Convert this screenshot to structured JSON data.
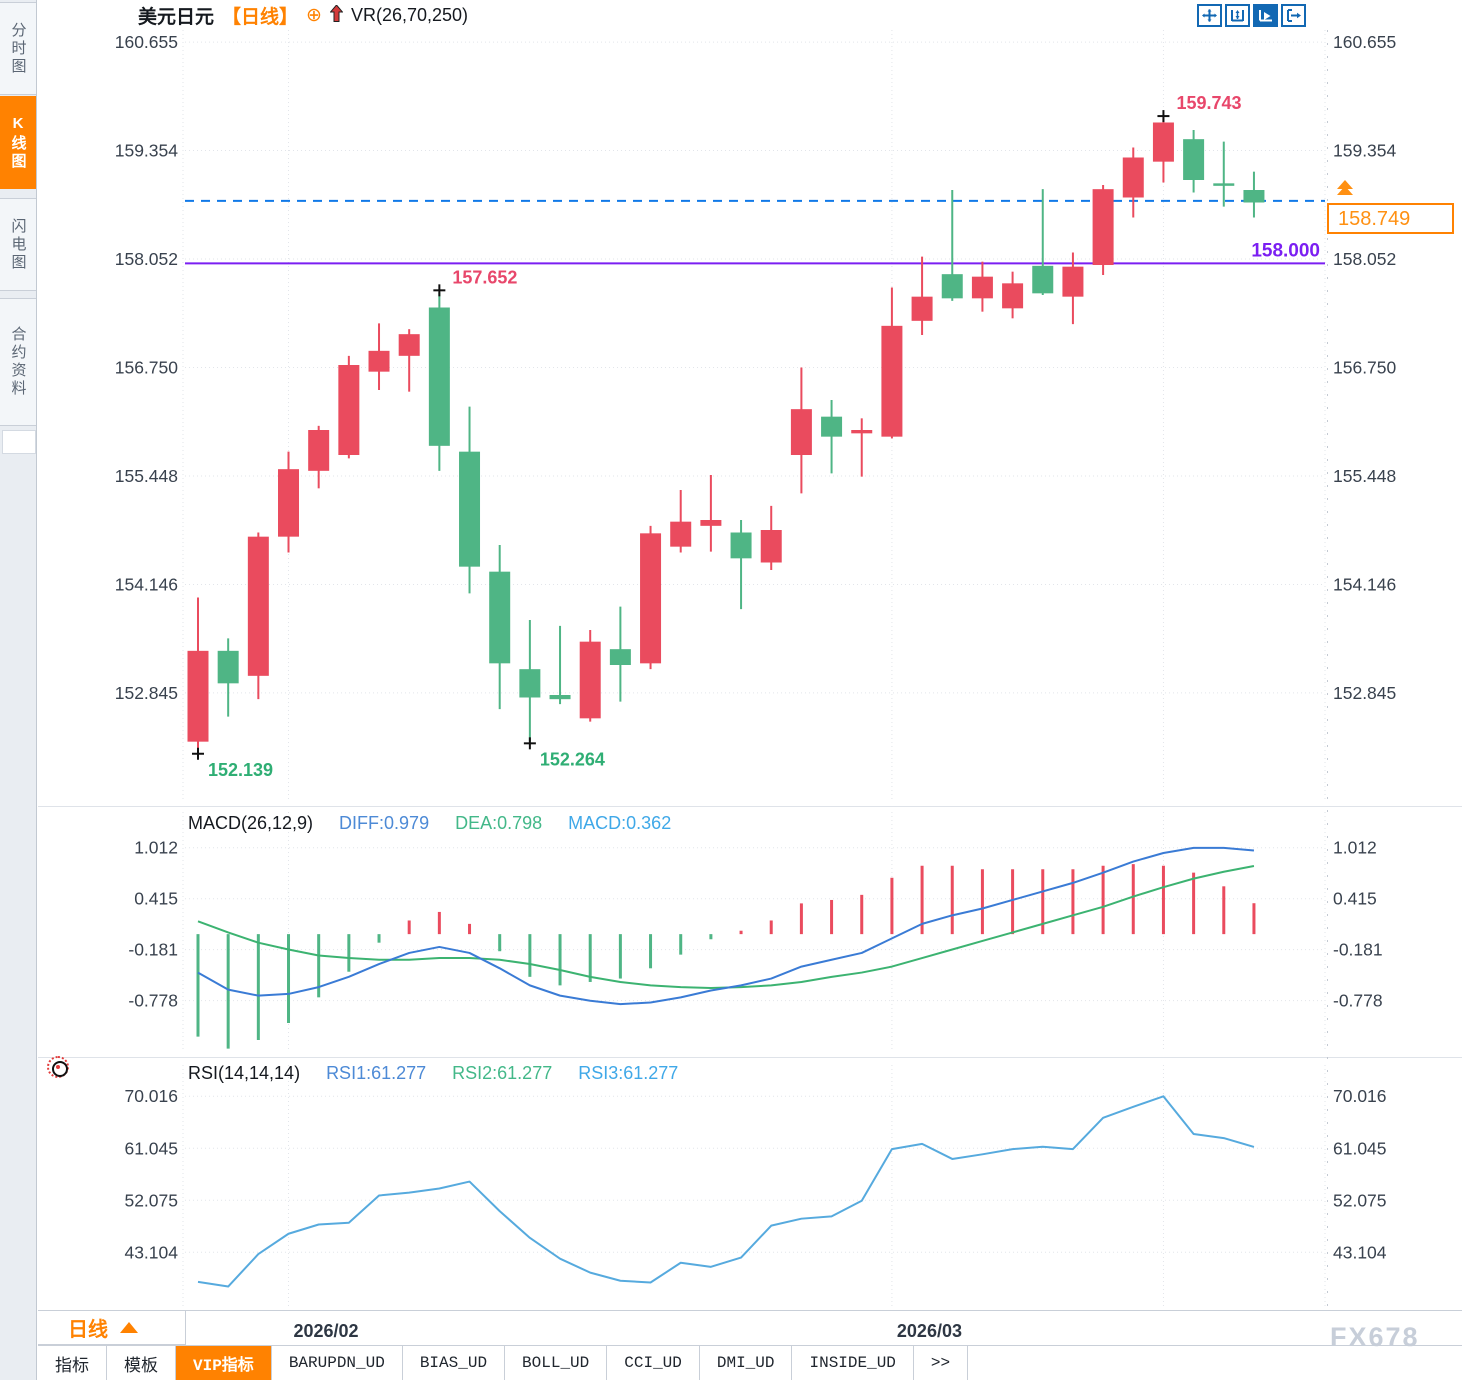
{
  "sidebar": {
    "tabs": [
      {
        "label": "分时图",
        "active": false
      },
      {
        "label": "K线图",
        "active": true
      },
      {
        "label": "闪电图",
        "active": false
      },
      {
        "label": "合约资料",
        "active": false
      }
    ]
  },
  "header": {
    "symbol": "美元日元",
    "period_tag": "【日线】",
    "plus_glyph": "⊕",
    "overlay_indicator": "VR(26,70,250)"
  },
  "toolbar": {
    "icons": [
      "move-crosshair-icon",
      "axis-range-icon",
      "axis-play-icon",
      "exit-right-icon"
    ]
  },
  "price_tag": {
    "value": "158.749"
  },
  "period_selector": {
    "label": "日线"
  },
  "watermark": "FX678",
  "bottom_tabs": {
    "items": [
      "指标",
      "模板",
      "VIP指标",
      "BARUPDN_UD",
      "BIAS_UD",
      "BOLL_UD",
      "CCI_UD",
      "DMI_UD",
      "INSIDE_UD",
      ">>"
    ],
    "active_index": 2
  },
  "chart_data": {
    "type": "candlestick",
    "title": "美元日元 日线 (USD/JPY daily)",
    "x_labels": [
      {
        "text": "2026/02",
        "candle": 4
      },
      {
        "text": "2026/03",
        "candle": 24
      }
    ],
    "extra_vgrid_candles": [
      33
    ],
    "main": {
      "ticks": [
        "160.655",
        "159.354",
        "158.052",
        "156.750",
        "155.448",
        "154.146",
        "152.845"
      ],
      "range": [
        151.56,
        160.8
      ]
    },
    "candles": [
      [
        152.26,
        153.99,
        152.139,
        153.35
      ],
      [
        153.35,
        153.5,
        152.56,
        152.96
      ],
      [
        153.05,
        154.77,
        152.77,
        154.72
      ],
      [
        154.72,
        155.74,
        154.53,
        155.53
      ],
      [
        155.51,
        156.05,
        155.3,
        156.0
      ],
      [
        155.7,
        156.89,
        155.66,
        156.78
      ],
      [
        156.7,
        157.28,
        156.48,
        156.95
      ],
      [
        156.89,
        157.21,
        156.46,
        157.15
      ],
      [
        157.47,
        157.652,
        155.51,
        155.81
      ],
      [
        155.74,
        156.28,
        154.04,
        154.36
      ],
      [
        154.3,
        154.62,
        152.65,
        153.2
      ],
      [
        153.13,
        153.72,
        152.264,
        152.79
      ],
      [
        152.82,
        153.65,
        152.71,
        152.77
      ],
      [
        152.54,
        153.6,
        152.5,
        153.46
      ],
      [
        153.37,
        153.88,
        152.74,
        153.18
      ],
      [
        153.2,
        154.85,
        153.13,
        154.76
      ],
      [
        154.6,
        155.28,
        154.53,
        154.9
      ],
      [
        154.85,
        155.46,
        154.54,
        154.92
      ],
      [
        154.77,
        154.92,
        153.85,
        154.46
      ],
      [
        154.41,
        155.09,
        154.32,
        154.8
      ],
      [
        155.7,
        156.75,
        155.24,
        156.25
      ],
      [
        156.16,
        156.36,
        155.48,
        155.92
      ],
      [
        155.96,
        156.14,
        155.44,
        156.0
      ],
      [
        155.92,
        157.71,
        155.9,
        157.25
      ],
      [
        157.31,
        158.08,
        157.14,
        157.6
      ],
      [
        157.87,
        158.88,
        157.55,
        157.58
      ],
      [
        157.58,
        158.02,
        157.42,
        157.84
      ],
      [
        157.46,
        157.9,
        157.34,
        157.76
      ],
      [
        157.97,
        158.89,
        157.62,
        157.64
      ],
      [
        157.6,
        158.13,
        157.27,
        157.96
      ],
      [
        157.98,
        158.94,
        157.86,
        158.89
      ],
      [
        158.79,
        159.39,
        158.55,
        159.27
      ],
      [
        159.22,
        159.743,
        158.97,
        159.69
      ],
      [
        159.49,
        159.6,
        158.85,
        159.0
      ],
      [
        158.96,
        159.46,
        158.68,
        158.93
      ],
      [
        158.88,
        159.1,
        158.55,
        158.73
      ]
    ],
    "annotations": [
      {
        "candle": 1,
        "type": "low",
        "label": "152.139"
      },
      {
        "candle": 9,
        "type": "high",
        "label": "157.652"
      },
      {
        "candle": 12,
        "type": "low",
        "label": "152.264"
      },
      {
        "candle": 33,
        "type": "high",
        "label": "159.743"
      }
    ],
    "hlines": [
      {
        "value": 158.0,
        "label": "158.000",
        "style": "solid",
        "color": "#7b1ff2"
      },
      {
        "value": 158.749,
        "label": "",
        "style": "dashed",
        "color": "#1179e8"
      }
    ],
    "macd": {
      "title": "MACD(26,12,9)",
      "readouts": [
        {
          "label": "DIFF:0.979",
          "color": "#4d8ad6"
        },
        {
          "label": "DEA:0.798",
          "color": "#43b889"
        },
        {
          "label": "MACD:0.362",
          "color": "#3fa8e8"
        }
      ],
      "ticks": [
        "1.012",
        "0.415",
        "-0.181",
        "-0.778"
      ],
      "range": [
        -1.38,
        1.43
      ],
      "diff": [
        -0.45,
        -0.65,
        -0.72,
        -0.7,
        -0.62,
        -0.5,
        -0.35,
        -0.22,
        -0.15,
        -0.22,
        -0.4,
        -0.6,
        -0.72,
        -0.78,
        -0.82,
        -0.8,
        -0.74,
        -0.66,
        -0.6,
        -0.52,
        -0.38,
        -0.3,
        -0.22,
        -0.05,
        0.12,
        0.22,
        0.3,
        0.4,
        0.5,
        0.6,
        0.72,
        0.85,
        0.95,
        1.01,
        1.01,
        0.979
      ],
      "dea": [
        0.15,
        0.02,
        -0.1,
        -0.18,
        -0.25,
        -0.28,
        -0.3,
        -0.3,
        -0.28,
        -0.28,
        -0.3,
        -0.35,
        -0.42,
        -0.5,
        -0.56,
        -0.6,
        -0.62,
        -0.63,
        -0.62,
        -0.6,
        -0.56,
        -0.5,
        -0.45,
        -0.38,
        -0.28,
        -0.18,
        -0.08,
        0.02,
        0.12,
        0.22,
        0.32,
        0.44,
        0.55,
        0.65,
        0.73,
        0.798
      ],
      "hist": [
        -1.2,
        -1.34,
        -1.24,
        -1.04,
        -0.74,
        -0.44,
        -0.1,
        0.16,
        0.26,
        0.12,
        -0.2,
        -0.5,
        -0.6,
        -0.56,
        -0.52,
        -0.4,
        -0.24,
        -0.06,
        0.04,
        0.16,
        0.36,
        0.4,
        0.46,
        0.66,
        0.8,
        0.8,
        0.76,
        0.76,
        0.76,
        0.76,
        0.8,
        0.82,
        0.8,
        0.72,
        0.56,
        0.362
      ]
    },
    "rsi": {
      "title": "RSI(14,14,14)",
      "readouts": [
        {
          "label": "RSI1:61.277",
          "color": "#4d8ad6"
        },
        {
          "label": "RSI2:61.277",
          "color": "#43b889"
        },
        {
          "label": "RSI3:61.277",
          "color": "#3fa8e8"
        }
      ],
      "ticks": [
        "70.016",
        "61.045",
        "52.075",
        "43.104"
      ],
      "range": [
        33.5,
        75.4
      ],
      "values": [
        38.0,
        37.2,
        42.8,
        46.3,
        47.9,
        48.2,
        52.9,
        53.4,
        54.1,
        55.3,
        50.2,
        45.6,
        42.0,
        39.6,
        38.2,
        37.9,
        41.3,
        40.6,
        42.2,
        47.7,
        48.9,
        49.3,
        52.0,
        60.9,
        61.8,
        59.2,
        60.0,
        60.9,
        61.3,
        60.9,
        66.3,
        68.2,
        70.0,
        63.5,
        62.8,
        61.277
      ]
    },
    "colors": {
      "up": "#ea4b5e",
      "down": "#4fb585",
      "grid": "#e2e5ea",
      "axis_text": "#39424e",
      "annotation_high": "#e8476b",
      "annotation_low": "#2fae74",
      "macd_diff": "#3a7bd5",
      "macd_dea": "#3cb371",
      "rsi_line": "#56aade",
      "separator": "#dfe3e9",
      "frame": "#c9cfd8"
    }
  }
}
